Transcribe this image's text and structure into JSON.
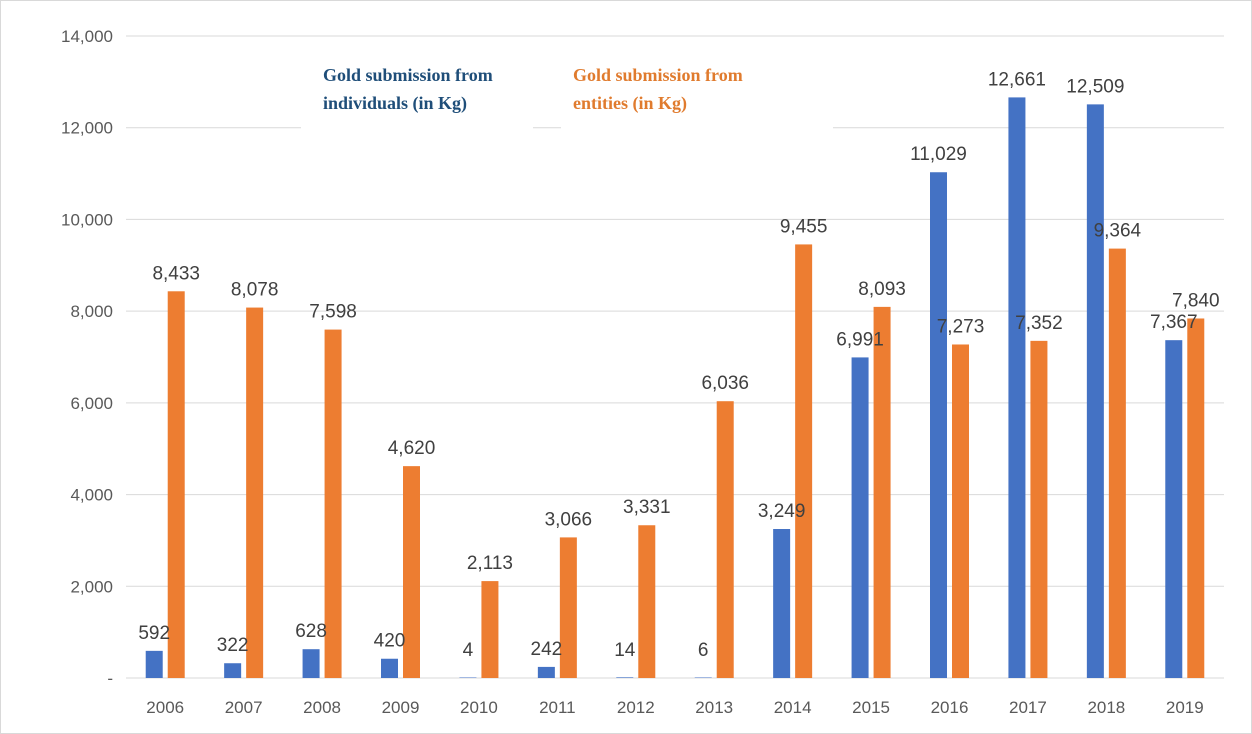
{
  "chart_data": {
    "type": "bar",
    "categories": [
      "2006",
      "2007",
      "2008",
      "2009",
      "2010",
      "2011",
      "2012",
      "2013",
      "2014",
      "2015",
      "2016",
      "2017",
      "2018",
      "2019"
    ],
    "series": [
      {
        "name": "Gold submission from individuals (in Kg)",
        "color": "#4472c4",
        "values": [
          592,
          322,
          628,
          420,
          4,
          242,
          14,
          6,
          3249,
          6991,
          11029,
          12661,
          12509,
          7367
        ],
        "labels": [
          "592",
          "322",
          "628",
          "420",
          "4",
          "242",
          "14",
          "6",
          "3,249",
          "6,991",
          "11,029",
          "12,661",
          "12,509",
          "7,367"
        ]
      },
      {
        "name": "Gold submission from entities (in Kg)",
        "color": "#ed7d31",
        "values": [
          8433,
          8078,
          7598,
          4620,
          2113,
          3066,
          3331,
          6036,
          9455,
          8093,
          7273,
          7352,
          9364,
          7840
        ],
        "labels": [
          "8,433",
          "8,078",
          "7,598",
          "4,620",
          "2,113",
          "3,066",
          "3,331",
          "6,036",
          "9,455",
          "8,093",
          "7,273",
          "7,352",
          "9,364",
          "7,840"
        ]
      }
    ],
    "ylim": [
      0,
      14000
    ],
    "yticks": [
      0,
      2000,
      4000,
      6000,
      8000,
      10000,
      12000,
      14000
    ],
    "ytick_labels": [
      "-",
      "2,000",
      "4,000",
      "6,000",
      "8,000",
      "10,000",
      "12,000",
      "14,000"
    ],
    "grid": true,
    "legend": {
      "individuals_line1": "Gold submission from",
      "individuals_line2": "individuals (in Kg)",
      "entities_line1": "Gold submission from",
      "entities_line2": "entities (in Kg)",
      "individuals_color": "#1f4e79",
      "entities_color": "#e07b2e",
      "placement": "top-left"
    }
  }
}
